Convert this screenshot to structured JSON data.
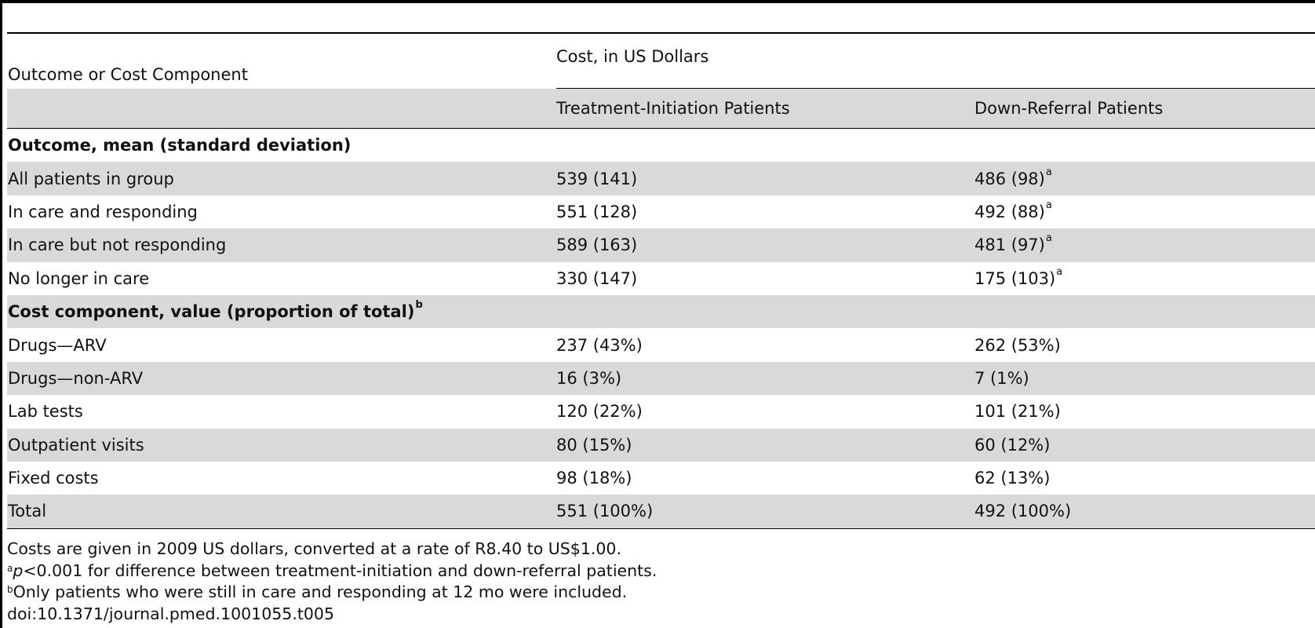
{
  "table": {
    "header": {
      "row_label_header": "Outcome or Cost Component",
      "cost_group_header": "Cost, in US Dollars",
      "col_treatment": "Treatment-Initiation Patients",
      "col_downreferral": "Down-Referral Patients"
    },
    "sections": [
      {
        "title": "Outcome, mean (standard deviation)",
        "title_sup": "",
        "rows": [
          {
            "label": "All patients in group",
            "treatment": "539 (141)",
            "treatment_sup": "",
            "downreferral": "486 (98)",
            "downreferral_sup": "a"
          },
          {
            "label": "In care and responding",
            "treatment": "551 (128)",
            "treatment_sup": "",
            "downreferral": "492 (88)",
            "downreferral_sup": "a"
          },
          {
            "label": "In care but not responding",
            "treatment": "589 (163)",
            "treatment_sup": "",
            "downreferral": "481 (97)",
            "downreferral_sup": "a"
          },
          {
            "label": "No longer in care",
            "treatment": "330 (147)",
            "treatment_sup": "",
            "downreferral": "175 (103)",
            "downreferral_sup": "a"
          }
        ]
      },
      {
        "title": "Cost component, value (proportion of total)",
        "title_sup": "b",
        "rows": [
          {
            "label": "Drugs—ARV",
            "treatment": "237 (43%)",
            "treatment_sup": "",
            "downreferral": "262 (53%)",
            "downreferral_sup": ""
          },
          {
            "label": "Drugs—non-ARV",
            "treatment": "16 (3%)",
            "treatment_sup": "",
            "downreferral": "7 (1%)",
            "downreferral_sup": ""
          },
          {
            "label": "Lab tests",
            "treatment": "120 (22%)",
            "treatment_sup": "",
            "downreferral": "101 (21%)",
            "downreferral_sup": ""
          },
          {
            "label": "Outpatient visits",
            "treatment": "80 (15%)",
            "treatment_sup": "",
            "downreferral": "60 (12%)",
            "downreferral_sup": ""
          },
          {
            "label": "Fixed costs",
            "treatment": "98 (18%)",
            "treatment_sup": "",
            "downreferral": "62 (13%)",
            "downreferral_sup": ""
          },
          {
            "label": "Total",
            "treatment": "551 (100%)",
            "treatment_sup": "",
            "downreferral": "492 (100%)",
            "downreferral_sup": ""
          }
        ]
      }
    ]
  },
  "footnotes": {
    "note1": "Costs are given in 2009 US dollars, converted at a rate of R8.40 to US$1.00.",
    "note2_marker": "a",
    "note2_italic": "p",
    "note2_text": "<0.001 for difference between treatment-initiation and down-referral patients.",
    "note3_marker": "b",
    "note3_text": "Only patients who were still in care and responding at 12 mo were included.",
    "doi": "doi:10.1371/journal.pmed.1001055.t005"
  },
  "colors": {
    "shade": "#d9d9d9",
    "rule": "#000000",
    "text": "#111111"
  }
}
